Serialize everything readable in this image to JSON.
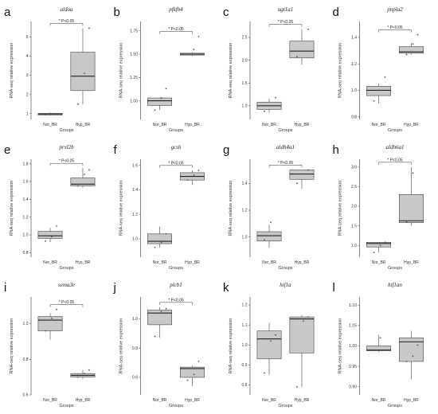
{
  "chart_data": [
    {
      "type": "box",
      "panel_label": "a",
      "title": "aldoa",
      "xlabel": "Groups",
      "ylabel": "RNA-seq relative expression",
      "categories": [
        "Nor_BR",
        "Hyp_BR"
      ],
      "yticks": [
        "1",
        "2",
        "3",
        "4",
        "5"
      ],
      "ylim": [
        0.7,
        5.8
      ],
      "boxes": [
        {
          "name": "Nor_BR",
          "min": 0.9,
          "q1": 0.93,
          "median": 0.98,
          "q3": 1.02,
          "max": 1.06,
          "points": [
            0.95,
            0.98,
            1.0
          ]
        },
        {
          "name": "Hyp_BR",
          "min": 1.5,
          "q1": 2.2,
          "median": 2.95,
          "q3": 4.2,
          "max": 5.45,
          "points": [
            1.5,
            3.1,
            5.45
          ]
        }
      ],
      "significance": "* P<0.05"
    },
    {
      "type": "box",
      "panel_label": "b",
      "title": "pfkfb4",
      "xlabel": "Groups",
      "ylabel": "RNA-seq relative expression",
      "categories": [
        "Nor_BR",
        "Hyp_BR"
      ],
      "yticks": [
        "1.00",
        "1.25",
        "1.50",
        "1.75"
      ],
      "ylim": [
        0.8,
        1.85
      ],
      "boxes": [
        {
          "name": "Nor_BR",
          "min": 0.9,
          "q1": 0.95,
          "median": 1.0,
          "q3": 1.03,
          "max": 1.03,
          "points": [
            0.9,
            1.03,
            1.13
          ]
        },
        {
          "name": "Hyp_BR",
          "min": 1.48,
          "q1": 1.49,
          "median": 1.5,
          "q3": 1.51,
          "max": 1.52,
          "points": [
            1.5,
            1.55,
            1.69
          ]
        }
      ],
      "significance": "* P<0.05"
    },
    {
      "type": "box",
      "panel_label": "c",
      "title": "ugt1a1",
      "xlabel": "Groups",
      "ylabel": "RNA-seq relative expression",
      "categories": [
        "Nor_BR",
        "Hyp_BR"
      ],
      "yticks": [
        "1.0",
        "1.5",
        "2.0",
        "2.5"
      ],
      "ylim": [
        0.7,
        2.85
      ],
      "boxes": [
        {
          "name": "Nor_BR",
          "min": 0.85,
          "q1": 0.92,
          "median": 1.0,
          "q3": 1.08,
          "max": 1.15,
          "points": [
            0.88,
            1.0,
            1.18
          ]
        },
        {
          "name": "Hyp_BR",
          "min": 1.9,
          "q1": 2.05,
          "median": 2.2,
          "q3": 2.42,
          "max": 2.68,
          "points": [
            2.08,
            2.2,
            2.68
          ]
        }
      ],
      "significance": "* P<0.05"
    },
    {
      "type": "box",
      "panel_label": "d",
      "title": "pnpla2",
      "xlabel": "Groups",
      "ylabel": "RNA-seq relative expression",
      "categories": [
        "Nor_BR",
        "Hyp_BR"
      ],
      "yticks": [
        "0.8",
        "1.0",
        "1.2",
        "1.4"
      ],
      "ylim": [
        0.78,
        1.52
      ],
      "boxes": [
        {
          "name": "Nor_BR",
          "min": 0.9,
          "q1": 0.96,
          "median": 1.0,
          "q3": 1.03,
          "max": 1.05,
          "points": [
            0.92,
            1.0,
            1.1
          ]
        },
        {
          "name": "Hyp_BR",
          "min": 1.27,
          "q1": 1.28,
          "median": 1.29,
          "q3": 1.33,
          "max": 1.36,
          "points": [
            1.27,
            1.35,
            1.42
          ]
        }
      ],
      "significance": "* P<0.05"
    },
    {
      "type": "box",
      "panel_label": "e",
      "title": "prxl2b",
      "xlabel": "Groups",
      "ylabel": "RNA-seq relative expression",
      "categories": [
        "Nor_BR",
        "Hyp_BR"
      ],
      "yticks": [
        "0.8",
        "1.0",
        "1.2",
        "1.4",
        "1.6",
        "1.8"
      ],
      "ylim": [
        0.75,
        1.85
      ],
      "boxes": [
        {
          "name": "Nor_BR",
          "min": 0.92,
          "q1": 0.96,
          "median": 0.99,
          "q3": 1.04,
          "max": 1.08,
          "points": [
            0.93,
            0.98,
            1.1
          ]
        },
        {
          "name": "Hyp_BR",
          "min": 1.53,
          "q1": 1.55,
          "median": 1.57,
          "q3": 1.64,
          "max": 1.75,
          "points": [
            1.55,
            1.68,
            1.73
          ]
        }
      ],
      "significance": "* P<0.05"
    },
    {
      "type": "box",
      "panel_label": "f",
      "title": "gcsh",
      "xlabel": "Groups",
      "ylabel": "RNA-seq relative expression",
      "categories": [
        "Nor_BR",
        "Hyp_BR"
      ],
      "yticks": [
        "1.0",
        "1.2",
        "1.4",
        "1.6"
      ],
      "ylim": [
        0.85,
        1.65
      ],
      "boxes": [
        {
          "name": "Nor_BR",
          "min": 0.93,
          "q1": 0.96,
          "median": 0.98,
          "q3": 1.04,
          "max": 1.1,
          "points": [
            0.93,
            0.97,
            1.04
          ]
        },
        {
          "name": "Hyp_BR",
          "min": 1.44,
          "q1": 1.48,
          "median": 1.51,
          "q3": 1.54,
          "max": 1.56,
          "points": [
            1.48,
            1.52,
            1.56
          ]
        }
      ],
      "significance": "* P<0.05"
    },
    {
      "type": "box",
      "panel_label": "g",
      "title": "aldh4a1",
      "xlabel": "Groups",
      "ylabel": "RNA-seq relative expression",
      "categories": [
        "Nor_BR",
        "Hyp_BR"
      ],
      "yticks": [
        "1.0",
        "1.2",
        "1.4"
      ],
      "ylim": [
        0.85,
        1.58
      ],
      "boxes": [
        {
          "name": "Nor_BR",
          "min": 0.92,
          "q1": 0.97,
          "median": 1.01,
          "q3": 1.04,
          "max": 1.09,
          "points": [
            0.98,
            1.11
          ]
        },
        {
          "name": "Hyp_BR",
          "min": 1.36,
          "q1": 1.43,
          "median": 1.47,
          "q3": 1.5,
          "max": 1.5,
          "points": [
            1.4,
            1.47,
            1.5
          ]
        }
      ],
      "significance": "* P<0.05"
    },
    {
      "type": "box",
      "panel_label": "h",
      "title": "aldh6a1",
      "xlabel": "Groups",
      "ylabel": "RNA-seq relative expression",
      "categories": [
        "Nor_BR",
        "Hyp_BR"
      ],
      "yticks": [
        "1.0",
        "1.5",
        "2.0",
        "2.5",
        "3.0"
      ],
      "ylim": [
        0.7,
        3.2
      ],
      "boxes": [
        {
          "name": "Nor_BR",
          "min": 0.82,
          "q1": 0.96,
          "median": 1.05,
          "q3": 1.08,
          "max": 1.08,
          "points": [
            0.82,
            1.0,
            1.08
          ]
        },
        {
          "name": "Hyp_BR",
          "min": 1.5,
          "q1": 1.58,
          "median": 1.63,
          "q3": 2.3,
          "max": 3.0,
          "points": [
            1.6,
            2.85
          ]
        }
      ],
      "significance": "* P<0.05"
    },
    {
      "type": "box",
      "panel_label": "i",
      "title": "sema3e",
      "xlabel": "Groups",
      "ylabel": "RNA-seq relative expression",
      "categories": [
        "Nor_BR",
        "Hyp_BR"
      ],
      "yticks": [
        "0.6",
        "0.8",
        "1.0"
      ],
      "ylim": [
        0.6,
        1.15
      ],
      "boxes": [
        {
          "name": "Nor_BR",
          "min": 0.91,
          "q1": 0.96,
          "median": 1.02,
          "q3": 1.04,
          "max": 1.06,
          "points": [
            0.96,
            1.03,
            1.08
          ]
        },
        {
          "name": "Hyp_BR",
          "min": 0.69,
          "q1": 0.7,
          "median": 0.71,
          "q3": 0.72,
          "max": 0.74,
          "points": [
            0.7,
            0.72,
            0.74
          ]
        }
      ],
      "significance": "* P<0.05"
    },
    {
      "type": "box",
      "panel_label": "j",
      "title": "plcb1",
      "xlabel": "Groups",
      "ylabel": "RNA-seq relative expression",
      "categories": [
        "Nor_BR",
        "Hyp_BR"
      ],
      "yticks": [
        "0.6",
        "0.8",
        "1.0"
      ],
      "ylim": [
        0.48,
        1.15
      ],
      "boxes": [
        {
          "name": "Nor_BR",
          "min": 0.87,
          "q1": 0.96,
          "median": 1.04,
          "q3": 1.06,
          "max": 1.08,
          "points": [
            0.88,
            1.05,
            1.07
          ]
        },
        {
          "name": "Hyp_BR",
          "min": 0.54,
          "q1": 0.6,
          "median": 0.66,
          "q3": 0.67,
          "max": 0.68,
          "points": [
            0.58,
            0.62,
            0.71
          ]
        }
      ],
      "significance": "* P<0.05"
    },
    {
      "type": "box",
      "panel_label": "k",
      "title": "hif1a",
      "xlabel": "Groups",
      "ylabel": "RNA-seq relative expression",
      "categories": [
        "Nor_BR",
        "Hyp_BR"
      ],
      "yticks": [
        "0.8",
        "0.9",
        "1.0",
        "1.1",
        "1.2"
      ],
      "ylim": [
        0.75,
        1.24
      ],
      "boxes": [
        {
          "name": "Nor_BR",
          "min": 0.85,
          "q1": 0.93,
          "median": 1.03,
          "q3": 1.07,
          "max": 1.11,
          "points": [
            0.86,
            1.02,
            1.05
          ]
        },
        {
          "name": "Hyp_BR",
          "min": 0.79,
          "q1": 0.96,
          "median": 1.13,
          "q3": 1.14,
          "max": 1.15,
          "points": [
            0.79,
            1.12,
            1.14
          ]
        }
      ],
      "significance": ""
    },
    {
      "type": "box",
      "panel_label": "l",
      "title": "hif1an",
      "xlabel": "Groups",
      "ylabel": "RNA-seq relative expression",
      "categories": [
        "Nor_BR",
        "Hyp_BR"
      ],
      "yticks": [
        "0.90",
        "0.95",
        "1.00",
        "1.05",
        "1.10"
      ],
      "ylim": [
        0.88,
        1.12
      ],
      "boxes": [
        {
          "name": "Nor_BR",
          "min": 0.985,
          "q1": 0.988,
          "median": 0.99,
          "q3": 1.0,
          "max": 1.027,
          "points": [
            0.99,
            1.02
          ]
        },
        {
          "name": "Hyp_BR",
          "min": 0.918,
          "q1": 0.962,
          "median": 1.01,
          "q3": 1.02,
          "max": 1.037,
          "points": [
            0.962,
            0.975,
            1.002
          ]
        }
      ],
      "significance": ""
    }
  ],
  "colors": {
    "box_fill": "#c8c8c8",
    "stroke": "#444444",
    "point": "#555555"
  }
}
